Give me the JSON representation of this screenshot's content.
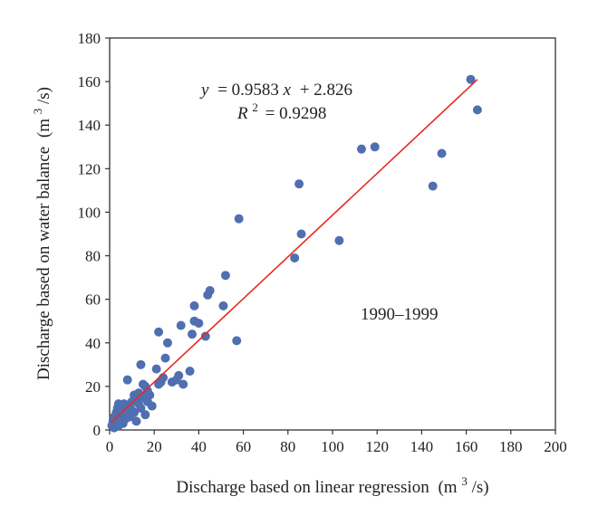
{
  "chart_data": {
    "type": "scatter",
    "xlabel": "Discharge based on linear regression",
    "xlabel_unit_prefix": "(m",
    "xlabel_unit_exp": "3",
    "xlabel_unit_suffix": "/s)",
    "ylabel": "Discharge based on water balance",
    "ylabel_unit_prefix": "(m",
    "ylabel_unit_exp": "3",
    "ylabel_unit_suffix": "/s)",
    "xlim": [
      0,
      200
    ],
    "ylim": [
      0,
      180
    ],
    "xticks": [
      "0",
      "20",
      "40",
      "60",
      "80",
      "100",
      "120",
      "140",
      "160",
      "180",
      "200"
    ],
    "yticks": [
      "0",
      "20",
      "40",
      "60",
      "80",
      "100",
      "120",
      "140",
      "160",
      "180"
    ],
    "grid": false,
    "colors": {
      "points": "#4f6fb0",
      "trendline": "#e8291c",
      "axis": "#333333"
    },
    "equation_y": "y",
    "equation_rest": "= 0.9583",
    "equation_x": "x",
    "equation_tail": "+ 2.826",
    "r2_label": "R",
    "r2_exp": "2",
    "r2_value": "= 0.9298",
    "period_label": "1990–1999",
    "trendline": {
      "slope": 0.9583,
      "intercept": 2.826,
      "x_range": [
        0.5,
        165
      ]
    },
    "points": [
      [
        1,
        2
      ],
      [
        1.5,
        4
      ],
      [
        2,
        6
      ],
      [
        2,
        1
      ],
      [
        2.5,
        3
      ],
      [
        3,
        8
      ],
      [
        3,
        5
      ],
      [
        3.5,
        10
      ],
      [
        4,
        2
      ],
      [
        4,
        12
      ],
      [
        4.5,
        6
      ],
      [
        5,
        9
      ],
      [
        5,
        4
      ],
      [
        5.5,
        11
      ],
      [
        6,
        7
      ],
      [
        6,
        3
      ],
      [
        6.5,
        12
      ],
      [
        7,
        5
      ],
      [
        7,
        10
      ],
      [
        8,
        8
      ],
      [
        8,
        23
      ],
      [
        9,
        11
      ],
      [
        9,
        6
      ],
      [
        10,
        13
      ],
      [
        10,
        9
      ],
      [
        11,
        16
      ],
      [
        11,
        8
      ],
      [
        12,
        14
      ],
      [
        12,
        4
      ],
      [
        13,
        12
      ],
      [
        13,
        17
      ],
      [
        14,
        30
      ],
      [
        14,
        10
      ],
      [
        15,
        21
      ],
      [
        15,
        15
      ],
      [
        16,
        20
      ],
      [
        16,
        7
      ],
      [
        17,
        13
      ],
      [
        17,
        18
      ],
      [
        18,
        16
      ],
      [
        19,
        11
      ],
      [
        21,
        28
      ],
      [
        22,
        45
      ],
      [
        22,
        21
      ],
      [
        23,
        22
      ],
      [
        24,
        24
      ],
      [
        25,
        33
      ],
      [
        26,
        40
      ],
      [
        28,
        22
      ],
      [
        30,
        23
      ],
      [
        31,
        25
      ],
      [
        32,
        48
      ],
      [
        33,
        21
      ],
      [
        36,
        27
      ],
      [
        37,
        44
      ],
      [
        38,
        57
      ],
      [
        38,
        50
      ],
      [
        40,
        49
      ],
      [
        43,
        43
      ],
      [
        44,
        62
      ],
      [
        45,
        64
      ],
      [
        51,
        57
      ],
      [
        52,
        71
      ],
      [
        57,
        41
      ],
      [
        58,
        97
      ],
      [
        83,
        79
      ],
      [
        85,
        113
      ],
      [
        86,
        90
      ],
      [
        103,
        87
      ],
      [
        113,
        129
      ],
      [
        119,
        130
      ],
      [
        145,
        112
      ],
      [
        149,
        127
      ],
      [
        162,
        161
      ],
      [
        165,
        147
      ]
    ]
  }
}
